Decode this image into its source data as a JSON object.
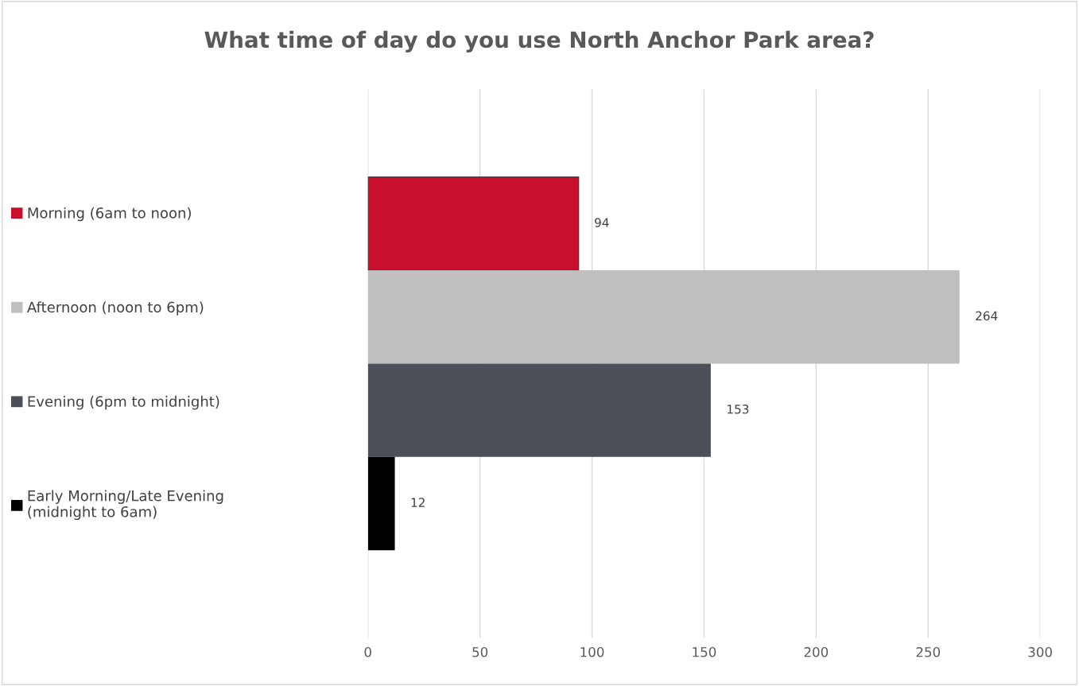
{
  "chart_data": {
    "type": "bar",
    "orientation": "horizontal",
    "title": "What time of day do you use North Anchor Park area?",
    "categories": [
      null
    ],
    "series": [
      {
        "name": "Morning (6am to noon)",
        "color": "#c8102e",
        "values": [
          94
        ]
      },
      {
        "name": "Afternoon (noon to 6pm)",
        "color": "#bfbfbf",
        "values": [
          264
        ]
      },
      {
        "name": "Evening (6pm to midnight)",
        "color": "#4b4f58",
        "values": [
          153
        ]
      },
      {
        "name": "Early Morning/Late Evening (midnight to 6am)",
        "color": "#000000",
        "values": [
          12
        ]
      }
    ],
    "xlim": [
      0,
      300
    ],
    "xticks": [
      0,
      50,
      100,
      150,
      200,
      250,
      300
    ],
    "grid": "x",
    "legend": "left",
    "data_labels": true
  }
}
